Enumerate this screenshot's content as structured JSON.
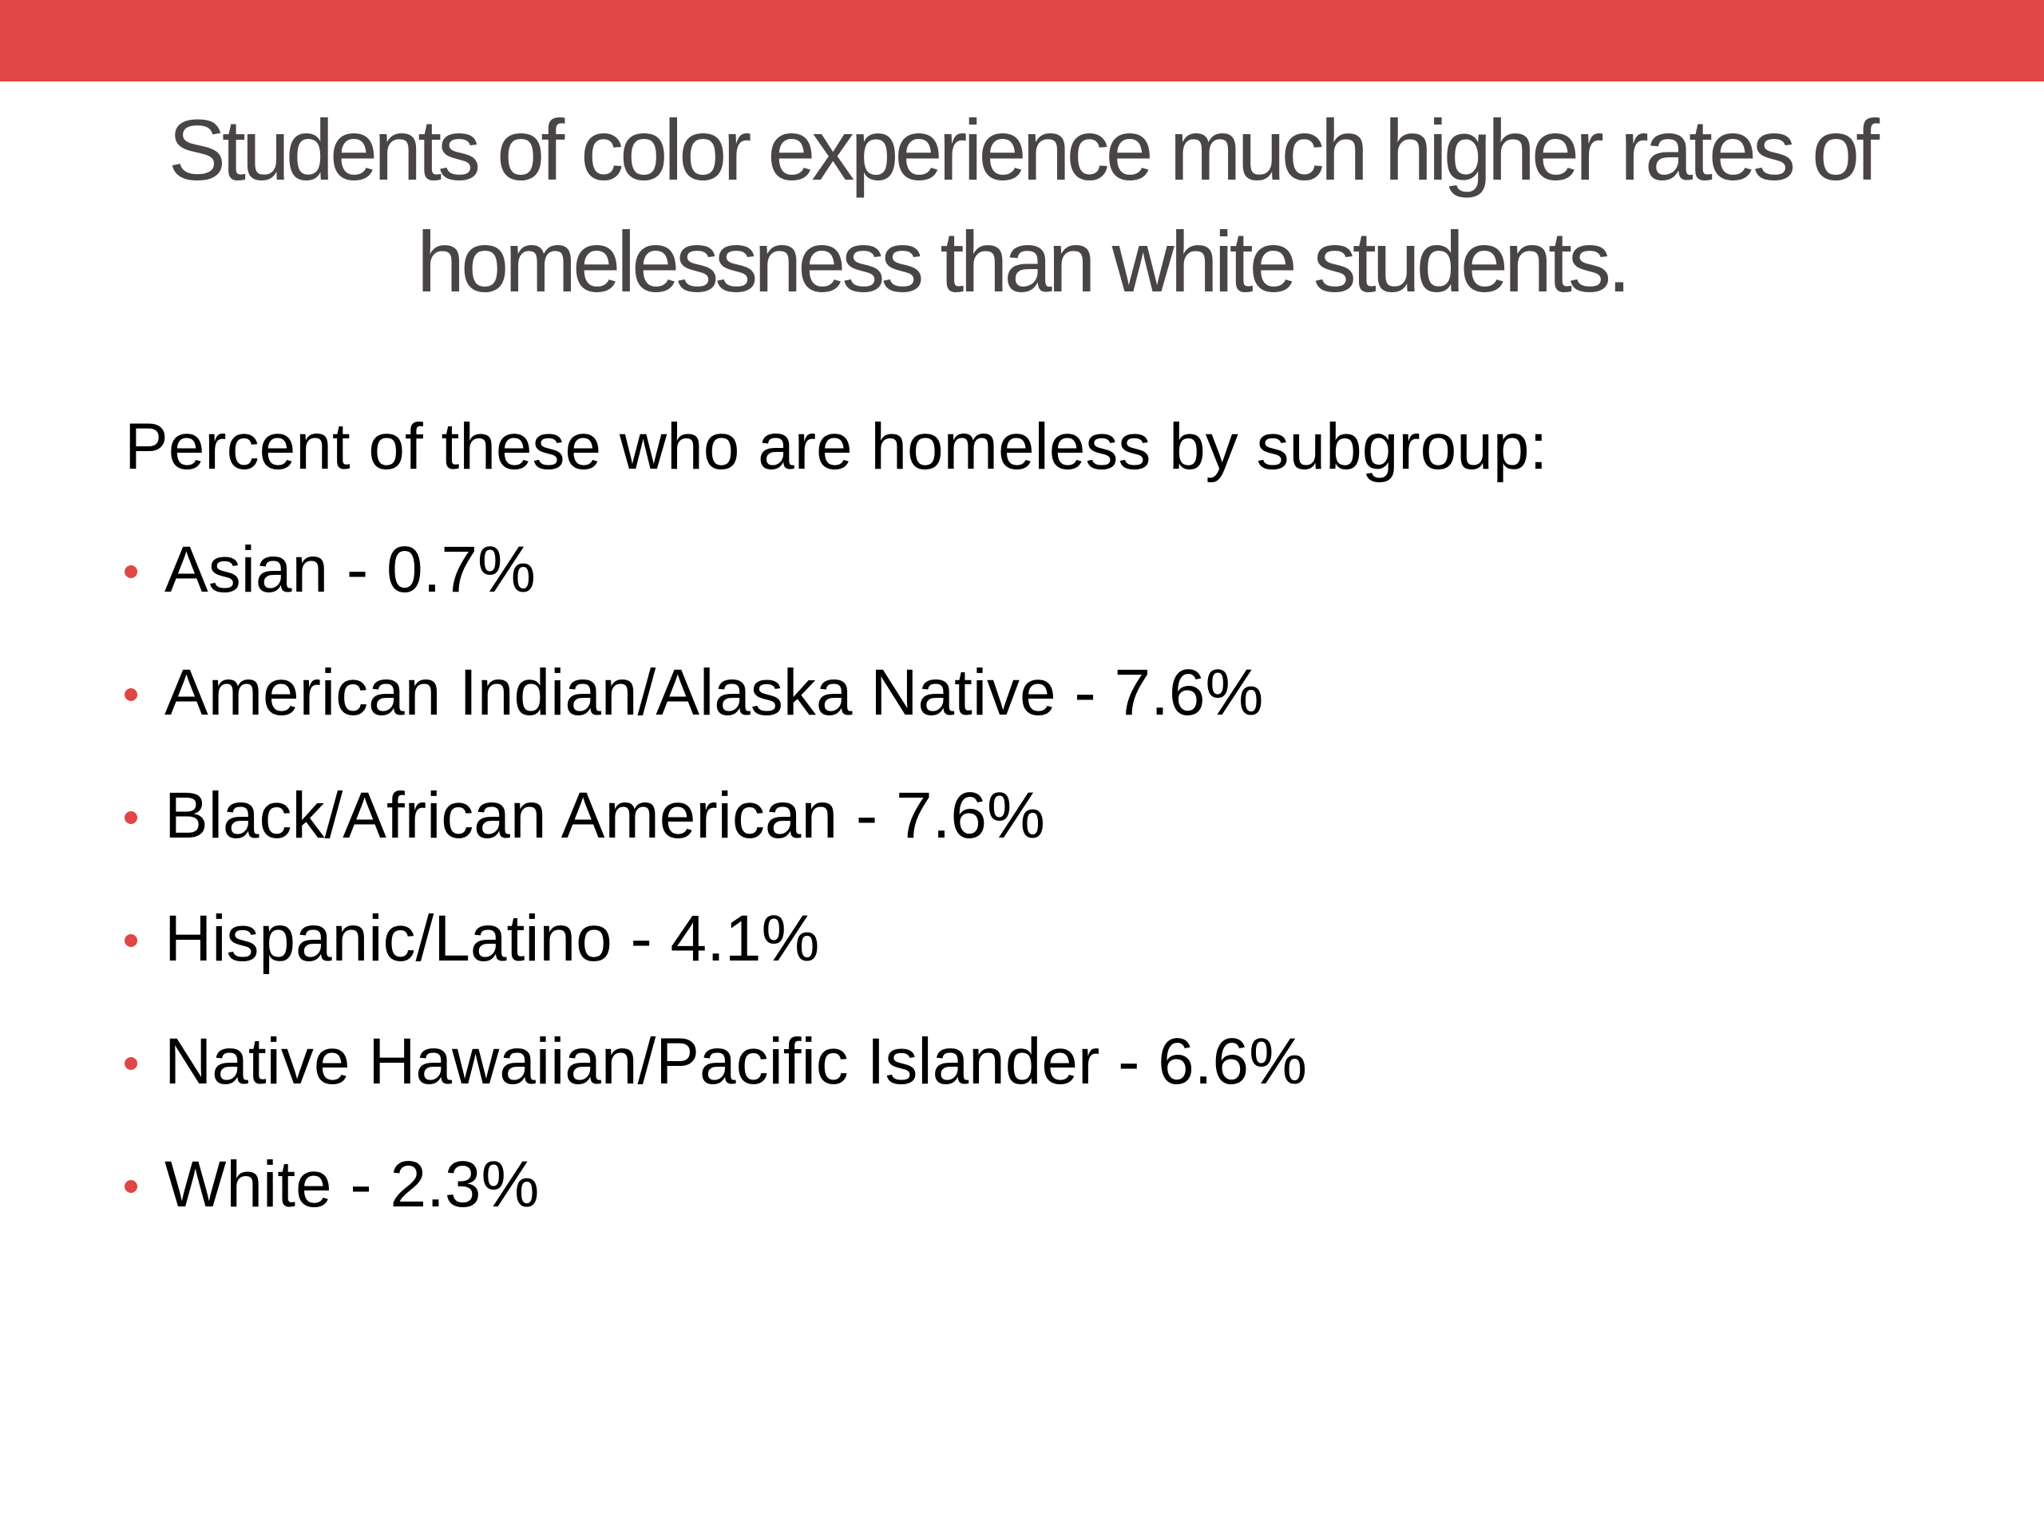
{
  "colors": {
    "accent": "#e04643",
    "title_text": "#4a4545",
    "body_text": "#000000"
  },
  "slide": {
    "title_lines": [
      "Students of color experience much higher rates of",
      "homelessness than white students."
    ],
    "intro": "Percent of these who are homeless by subgroup:",
    "bullets": [
      {
        "label": "Asian - 0.7%"
      },
      {
        "label": "American Indian/Alaska Native - 7.6%"
      },
      {
        "label": "Black/African American - 7.6%"
      },
      {
        "label": "Hispanic/Latino - 4.1%"
      },
      {
        "label": "Native Hawaiian/Pacific Islander - 6.6%"
      },
      {
        "label": "White - 2.3%"
      }
    ]
  }
}
